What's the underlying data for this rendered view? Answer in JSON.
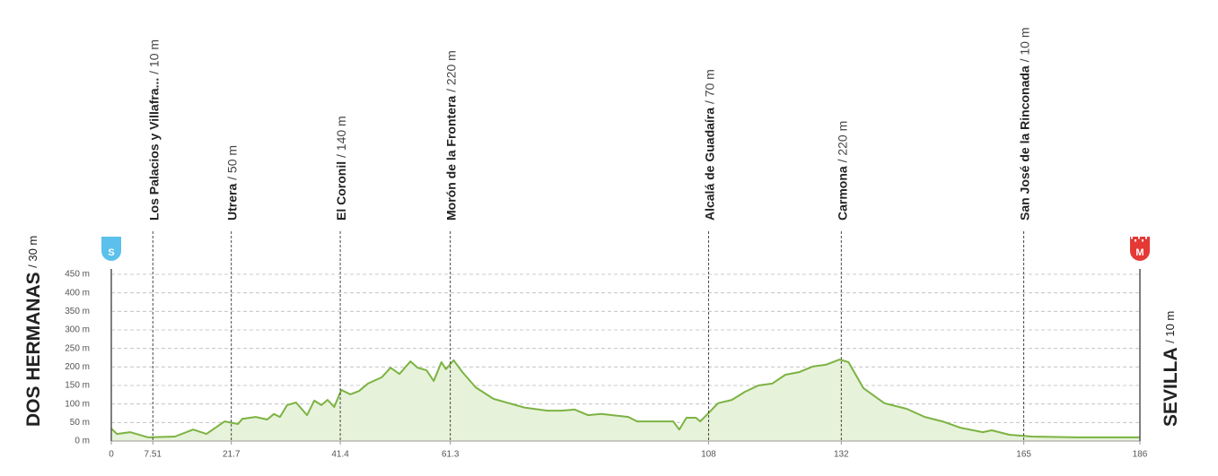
{
  "chart_data": {
    "type": "area",
    "x": [
      0,
      1,
      3.4,
      6.7,
      11.5,
      14.8,
      17.2,
      20.5,
      22.9,
      23.7,
      26.1,
      28.2,
      29.4,
      30.5,
      31.8,
      33.4,
      35.4,
      36.7,
      38,
      39.1,
      40.3,
      41.6,
      43.2,
      44.8,
      46.4,
      48.9,
      50.5,
      52.1,
      54.1,
      55.4,
      57,
      58.3,
      59.7,
      60.5,
      61.9,
      63.5,
      65.9,
      69.1,
      74.8,
      78.9,
      81.3,
      83.8,
      86.2,
      88.6,
      93.5,
      95.1,
      101.6,
      102.7,
      104,
      105.7,
      106.5,
      108.1,
      109.7,
      112.2,
      114.6,
      117,
      119.5,
      121.9,
      124.4,
      126.8,
      129.2,
      131.7,
      133.3,
      136,
      139.8,
      143.8,
      147.1,
      150.3,
      153.5,
      157.6,
      159.2,
      162.4,
      166.5,
      174.6,
      181.1,
      186
    ],
    "values": [
      34,
      19,
      24,
      10,
      12,
      31,
      19,
      53,
      46,
      60,
      65,
      58,
      73,
      65,
      97,
      104,
      70,
      109,
      97,
      111,
      92,
      138,
      126,
      135,
      155,
      172,
      198,
      181,
      215,
      198,
      191,
      162,
      213,
      194,
      218,
      186,
      145,
      114,
      90,
      82,
      82,
      85,
      70,
      73,
      65,
      53,
      53,
      31,
      63,
      63,
      53,
      77,
      102,
      111,
      133,
      150,
      155,
      179,
      186,
      201,
      206,
      220,
      213,
      143,
      102,
      87,
      65,
      53,
      36,
      24,
      29,
      17,
      12,
      10,
      10,
      10
    ],
    "color": "#7cb342",
    "fill_color": "#e7f2da",
    "xlim": [
      0,
      186
    ],
    "xticks": [
      0,
      7.51,
      21.7,
      41.4,
      61.3,
      108,
      132,
      165,
      186
    ],
    "ylim": [
      0,
      450
    ],
    "yticks": [
      {
        "value": 0,
        "label": "0 m"
      },
      {
        "value": 50,
        "label": "50 m"
      },
      {
        "value": 100,
        "label": "100 m"
      },
      {
        "value": 150,
        "label": "150 m"
      },
      {
        "value": 200,
        "label": "200 m"
      },
      {
        "value": 250,
        "label": "250 m"
      },
      {
        "value": 300,
        "label": "300 m"
      },
      {
        "value": 350,
        "label": "350 m"
      },
      {
        "value": 400,
        "label": "400 m"
      },
      {
        "value": 450,
        "label": "450 m"
      }
    ],
    "grid": true,
    "start": {
      "name": "DOS HERMANAS",
      "elevation": "/ 30 m",
      "badge": "S",
      "color": "#5bc0eb"
    },
    "finish": {
      "name": "SEVILLA",
      "elevation": "/ 10 m",
      "badge": "M",
      "color": "#e53935"
    },
    "waypoints": [
      {
        "name": "Los Palacios y Villafra...",
        "elevation": "/ 10 m",
        "x": 7.51
      },
      {
        "name": "Utrera",
        "elevation": "/ 50 m",
        "x": 21.7
      },
      {
        "name": "El Coronil",
        "elevation": "/ 140 m",
        "x": 41.4
      },
      {
        "name": "Morón de la Frontera",
        "elevation": "/ 220 m",
        "x": 61.3
      },
      {
        "name": "Alcalá de Guadaíra",
        "elevation": "/ 70 m",
        "x": 108
      },
      {
        "name": "Carmona",
        "elevation": "/ 220 m",
        "x": 132
      },
      {
        "name": "San José de la Rinconada",
        "elevation": "/ 10 m",
        "x": 165
      }
    ]
  }
}
